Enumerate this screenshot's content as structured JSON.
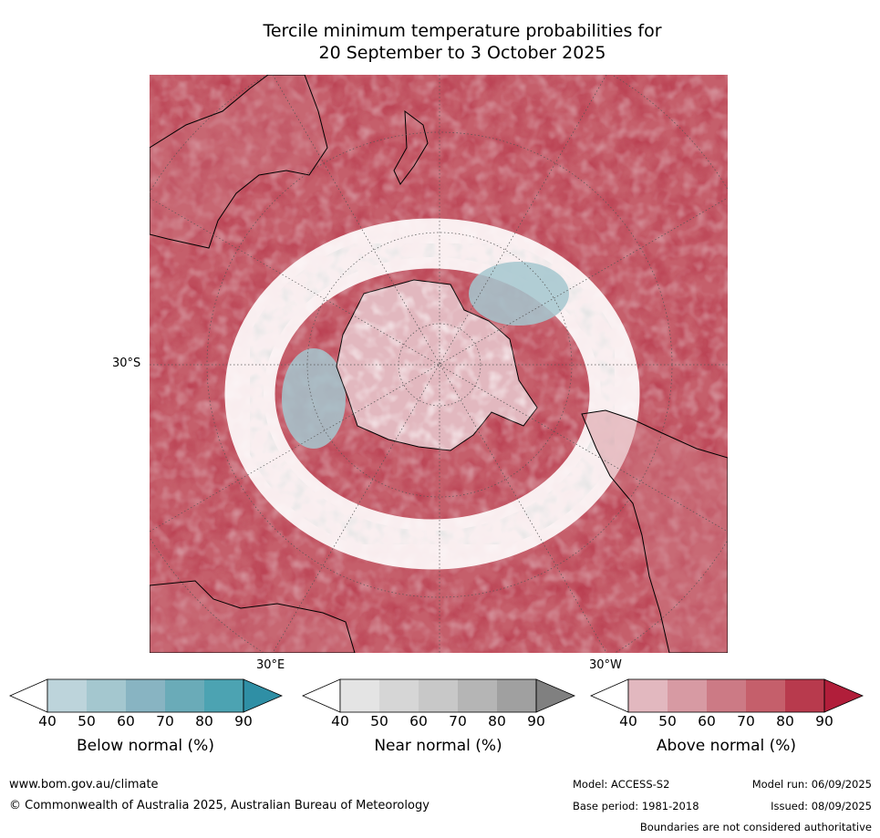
{
  "title": {
    "line1": "Tercile minimum temperature probabilities for",
    "line2": "20 September to 3 October 2025"
  },
  "map": {
    "projection": "south-polar-stereographic",
    "lat_label": "30°S",
    "lon_labels": {
      "east": "30°E",
      "west": "30°W"
    },
    "colors": {
      "below": [
        "#bdd4db",
        "#a4c7cf",
        "#88b4c2",
        "#6aabb8",
        "#4ca3b2",
        "#2f8fa5"
      ],
      "near": [
        "#e4e4e4",
        "#d6d6d6",
        "#c8c8c8",
        "#b5b5b5",
        "#a0a0a0",
        "#808080"
      ],
      "above": [
        "#e2b8bf",
        "#d79aa3",
        "#cc7a85",
        "#c55f6b",
        "#b83a4d",
        "#b11e3a"
      ],
      "land_outline": "#000000",
      "graticule": "#555555"
    }
  },
  "colorbars": [
    {
      "label": "Below normal (%)",
      "kind": "below",
      "ticks": [
        "40",
        "50",
        "60",
        "70",
        "80",
        "90"
      ]
    },
    {
      "label": "Near normal (%)",
      "kind": "near",
      "ticks": [
        "40",
        "50",
        "60",
        "70",
        "80",
        "90"
      ]
    },
    {
      "label": "Above normal (%)",
      "kind": "above",
      "ticks": [
        "40",
        "50",
        "60",
        "70",
        "80",
        "90"
      ]
    }
  ],
  "footer": {
    "website": "www.bom.gov.au/climate",
    "copyright": "© Commonwealth of Australia 2025, Australian Bureau of Meteorology",
    "model": "Model: ACCESS-S2",
    "model_run": "Model run: 06/09/2025",
    "base_period": "Base period: 1981-2018",
    "issued": "Issued: 08/09/2025",
    "disclaimer": "Boundaries are not considered authoritative"
  }
}
